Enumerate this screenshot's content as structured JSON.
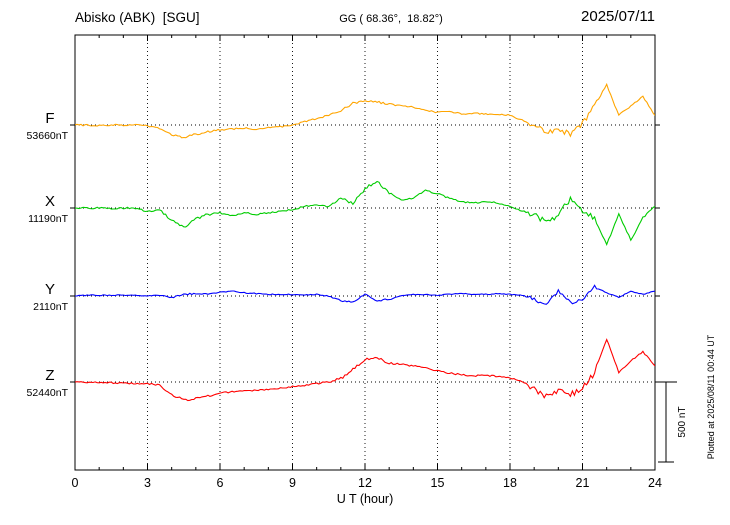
{
  "header": {
    "station": "Abisko (ABK)  [SGU]",
    "coords": "GG ( 68.36°,  18.82°)",
    "date": "2025/07/11"
  },
  "axis": {
    "x_label": "U T (hour)",
    "x_ticks": [
      0,
      3,
      6,
      9,
      12,
      15,
      18,
      21,
      24
    ],
    "x_range": [
      0,
      24
    ]
  },
  "scale_bar": {
    "label": "500 nT",
    "nT": 500
  },
  "footnote": "Plotted at 2025/08/11 00:44 UT",
  "traces": [
    {
      "id": "F",
      "label": "F",
      "baseline_label": "53660nT",
      "baseline_nT": 53660,
      "color": "#FFA500"
    },
    {
      "id": "X",
      "label": "X",
      "baseline_label": "11190nT",
      "baseline_nT": 11190,
      "color": "#00CC00"
    },
    {
      "id": "Y",
      "label": "Y",
      "baseline_label": "2110nT",
      "baseline_nT": 2110,
      "color": "#0000FF"
    },
    {
      "id": "Z",
      "label": "Z",
      "baseline_label": "52440nT",
      "baseline_nT": 52440,
      "color": "#FF0000"
    }
  ],
  "chart_data": {
    "type": "line",
    "title": "Abisko (ABK) [SGU] magnetogram 2025/07/11",
    "xlabel": "U T (hour)",
    "xlim": [
      0,
      24
    ],
    "units": "nT",
    "value_mode": "deviation_from_baseline_nT",
    "grid": "dotted vertical every 3 h, dotted horizontal baseline per trace",
    "x": [
      0,
      0.5,
      1,
      1.5,
      2,
      2.5,
      3,
      3.5,
      4,
      4.5,
      5,
      5.5,
      6,
      6.5,
      7,
      7.5,
      8,
      8.5,
      9,
      9.5,
      10,
      10.5,
      11,
      11.5,
      12,
      12.5,
      13,
      13.5,
      14,
      14.5,
      15,
      15.5,
      16,
      16.5,
      17,
      17.5,
      18,
      18.5,
      19,
      19.5,
      20,
      20.5,
      21,
      21.5,
      22,
      22.5,
      23,
      23.5,
      24
    ],
    "series": [
      {
        "name": "F",
        "baseline": 53660,
        "values": [
          0,
          0,
          -5,
          0,
          0,
          0,
          -5,
          -20,
          -60,
          -75,
          -60,
          -40,
          -30,
          -25,
          -20,
          -25,
          -15,
          -10,
          0,
          20,
          40,
          60,
          90,
          140,
          150,
          140,
          130,
          120,
          110,
          90,
          80,
          85,
          70,
          75,
          70,
          65,
          60,
          30,
          0,
          -50,
          -30,
          -60,
          10,
          120,
          250,
          60,
          120,
          180,
          60
        ]
      },
      {
        "name": "X",
        "baseline": 11190,
        "values": [
          0,
          0,
          0,
          -5,
          0,
          0,
          -25,
          -10,
          -80,
          -120,
          -70,
          -40,
          -30,
          -50,
          -30,
          -40,
          -30,
          -20,
          -10,
          10,
          20,
          10,
          60,
          30,
          120,
          170,
          90,
          50,
          60,
          110,
          90,
          60,
          40,
          30,
          40,
          30,
          10,
          -20,
          -40,
          -90,
          -40,
          60,
          -20,
          -60,
          -230,
          -40,
          -200,
          -60,
          10
        ]
      },
      {
        "name": "Y",
        "baseline": 2110,
        "values": [
          0,
          5,
          5,
          5,
          5,
          5,
          0,
          5,
          -10,
          10,
          15,
          10,
          25,
          30,
          20,
          15,
          10,
          10,
          10,
          5,
          10,
          0,
          -30,
          -40,
          10,
          -30,
          -20,
          0,
          10,
          10,
          5,
          10,
          15,
          10,
          10,
          15,
          10,
          5,
          -20,
          -60,
          30,
          -40,
          -30,
          60,
          20,
          -10,
          30,
          10,
          30
        ]
      },
      {
        "name": "Z",
        "baseline": 52440,
        "values": [
          0,
          0,
          -5,
          -5,
          -5,
          -10,
          -10,
          -20,
          -80,
          -110,
          -105,
          -90,
          -70,
          -60,
          -55,
          -50,
          -45,
          -40,
          -30,
          -20,
          -10,
          0,
          20,
          80,
          140,
          150,
          120,
          110,
          100,
          90,
          70,
          55,
          45,
          40,
          40,
          35,
          25,
          5,
          -40,
          -90,
          -60,
          -80,
          -40,
          60,
          270,
          60,
          130,
          190,
          100
        ]
      }
    ]
  }
}
